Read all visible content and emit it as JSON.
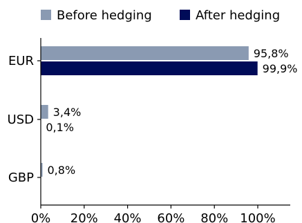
{
  "chart_data": {
    "type": "bar",
    "orientation": "horizontal",
    "categories": [
      "EUR",
      "USD",
      "GBP"
    ],
    "series": [
      {
        "name": "Before hedging",
        "color": "#8a9ab2",
        "values": [
          95.8,
          3.4,
          0.8
        ],
        "labels": [
          "95,8%",
          "3,4%",
          "0,8%"
        ]
      },
      {
        "name": "After hedging",
        "color": "#000b58",
        "values": [
          99.9,
          0.1,
          0.0
        ],
        "labels": [
          "99,9%",
          "0,1%",
          ""
        ]
      }
    ],
    "xlim": [
      0,
      115
    ],
    "xticks": [
      0,
      20,
      40,
      60,
      80,
      100
    ],
    "xtick_labels": [
      "0%",
      "20%",
      "40%",
      "60%",
      "80%",
      "100%"
    ],
    "legend_position": "top",
    "grid": false
  }
}
